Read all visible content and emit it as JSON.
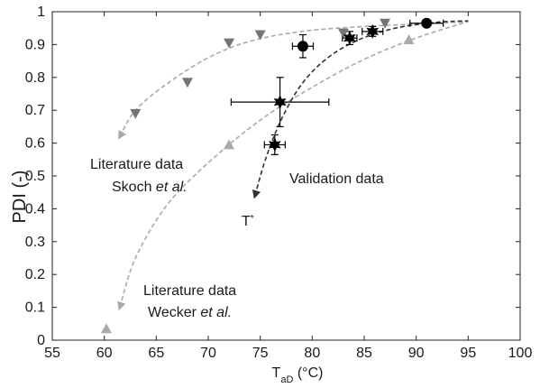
{
  "chart_data": {
    "type": "scatter",
    "title": "",
    "xlabel": {
      "main": "T",
      "sub": "aD",
      "rest": " (°C)"
    },
    "ylabel": "PDI (-)",
    "xlim": [
      55,
      100
    ],
    "ylim": [
      0,
      1
    ],
    "xticks": [
      "55",
      "60",
      "65",
      "70",
      "75",
      "80",
      "85",
      "90",
      "95",
      "100"
    ],
    "yticks": [
      "0",
      "0.1",
      "0.2",
      "0.3",
      "0.4",
      "0.5",
      "0.6",
      "0.7",
      "0.8",
      "0.9",
      "1"
    ],
    "grid": false,
    "series": [
      {
        "marker": "triangle-down",
        "color": "#757575",
        "x": [
          63,
          68,
          72,
          75,
          83,
          87
        ],
        "y": [
          0.69,
          0.785,
          0.905,
          0.93,
          0.935,
          0.965
        ]
      },
      {
        "marker": "triangle-up",
        "color": "#aaaaaa",
        "x": [
          60.2,
          72,
          89.3
        ],
        "y": [
          0.035,
          0.595,
          0.915
        ]
      },
      {
        "marker": "circle",
        "color": "#000000",
        "x": [
          79.1,
          91
        ],
        "y": [
          0.895,
          0.965
        ],
        "xerr": [
          1,
          1.6
        ],
        "yerr": [
          0.035,
          0
        ]
      },
      {
        "marker": "star",
        "color": "#000000",
        "x": [
          76.4,
          76.9,
          83.6,
          85.8
        ],
        "y": [
          0.595,
          0.725,
          0.92,
          0.94
        ],
        "xerr": [
          1,
          4.7,
          0.7,
          1
        ],
        "yerr": [
          0.03,
          0.075,
          0.02,
          0.015
        ]
      }
    ],
    "curves": [
      {
        "color": "#aaaaaa",
        "x": [
          61.5,
          63,
          66,
          70,
          74,
          79,
          85,
          92,
          95
        ],
        "y": [
          0.62,
          0.7,
          0.78,
          0.86,
          0.91,
          0.94,
          0.955,
          0.965,
          0.97
        ],
        "arrow": "start"
      },
      {
        "color": "#aaaaaa",
        "x": [
          61.5,
          63,
          66,
          70,
          75,
          80,
          85,
          90,
          95
        ],
        "y": [
          0.1,
          0.25,
          0.41,
          0.54,
          0.67,
          0.77,
          0.855,
          0.92,
          0.97
        ],
        "arrow": "start"
      },
      {
        "color": "#333333",
        "x": [
          74.5,
          75.5,
          77,
          79,
          81.5,
          84.5,
          88,
          92,
          95
        ],
        "y": [
          0.44,
          0.55,
          0.67,
          0.78,
          0.86,
          0.915,
          0.95,
          0.968,
          0.972
        ],
        "arrow": "start"
      }
    ],
    "annotations": {
      "skoch": {
        "line1": "Literature data",
        "line2_prefix": "Skoch ",
        "line2_italic": "et al."
      },
      "wecker": {
        "line1": "Literature data",
        "line2_prefix": "Wecker ",
        "line2_italic": "et al."
      },
      "validation": "Validation data",
      "tstar": {
        "main": "T",
        "sup": "*"
      }
    }
  }
}
